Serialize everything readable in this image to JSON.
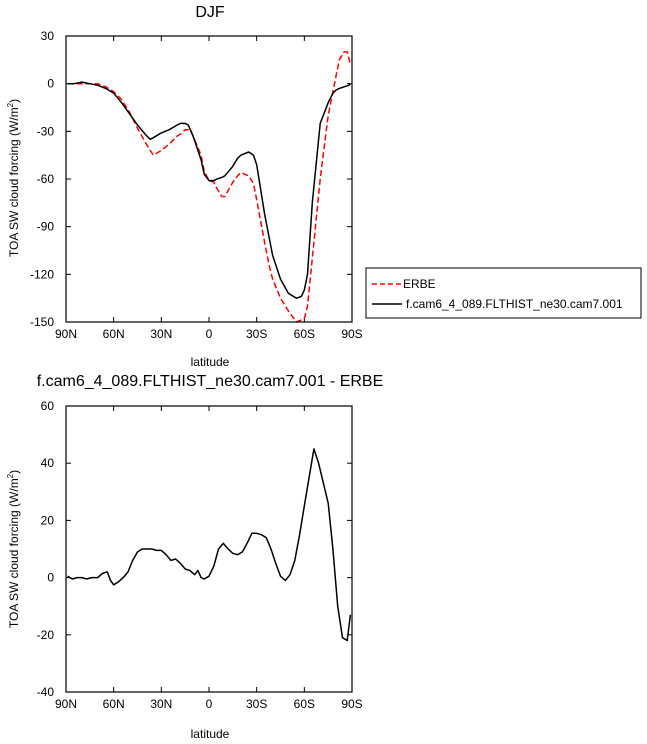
{
  "chart_data": [
    {
      "type": "line",
      "title": "DJF",
      "xlabel": "latitude",
      "ylabel": "TOA SW cloud forcing (W/m",
      "ylabel_sup": "2",
      "ylabel_end": ")",
      "xlim": [
        90,
        -90
      ],
      "ylim": [
        -150,
        30
      ],
      "xticks": [
        90,
        60,
        30,
        0,
        -30,
        -60,
        -90
      ],
      "xtick_labels": [
        "90N",
        "60N",
        "30N",
        "0",
        "30S",
        "60S",
        "90S"
      ],
      "yticks": [
        30,
        0,
        -30,
        -60,
        -90,
        -120,
        -150
      ],
      "ytick_labels": [
        "30",
        "0",
        "-30",
        "-60",
        "-90",
        "-120",
        "-150"
      ],
      "legend_position": "right",
      "series": [
        {
          "name": "ERBE",
          "color": "#ff0000",
          "style": "dashed",
          "x": [
            89,
            85,
            80,
            75,
            70,
            65,
            60,
            55,
            50,
            45,
            40,
            37,
            35,
            30,
            25,
            20,
            17,
            15,
            12,
            10,
            5,
            3,
            0,
            -3,
            -5,
            -8,
            -10,
            -15,
            -18,
            -20,
            -25,
            -28,
            -30,
            -35,
            -38,
            -40,
            -45,
            -50,
            -55,
            -60,
            -62,
            -65,
            -70,
            -75,
            -80,
            -82,
            -85,
            -87,
            -88,
            -89
          ],
          "y": [
            0,
            0,
            0,
            0,
            0,
            -2,
            -5,
            -10,
            -18,
            -28,
            -37,
            -42,
            -45,
            -42,
            -38,
            -33,
            -31,
            -29,
            -29,
            -33,
            -45,
            -55,
            -61,
            -62,
            -66,
            -71,
            -71,
            -62,
            -58,
            -56,
            -58,
            -63,
            -73,
            -100,
            -115,
            -123,
            -135,
            -143,
            -150,
            -148,
            -140,
            -110,
            -60,
            -20,
            5,
            15,
            20,
            20,
            16,
            12
          ]
        },
        {
          "name": "f.cam6_4_089.FLTHIST_ne30.cam7.001",
          "color": "#000000",
          "style": "solid",
          "x": [
            89,
            85,
            80,
            75,
            70,
            65,
            60,
            55,
            50,
            45,
            40,
            37,
            35,
            30,
            25,
            20,
            18,
            15,
            13,
            10,
            5,
            3,
            0,
            -3,
            -5,
            -8,
            -10,
            -15,
            -18,
            -20,
            -25,
            -28,
            -30,
            -35,
            -40,
            -45,
            -50,
            -55,
            -58,
            -60,
            -62,
            -65,
            -70,
            -75,
            -78,
            -80,
            -82,
            -85,
            -88,
            -89
          ],
          "y": [
            0,
            0,
            1,
            0,
            -1,
            -3,
            -6,
            -12,
            -19,
            -26,
            -32,
            -35,
            -34,
            -31,
            -29,
            -26,
            -25,
            -25,
            -26,
            -33,
            -48,
            -57,
            -61,
            -61,
            -60,
            -59,
            -58,
            -52,
            -47,
            -45,
            -43,
            -45,
            -51,
            -82,
            -108,
            -123,
            -132,
            -135,
            -134,
            -130,
            -120,
            -75,
            -25,
            -12,
            -6,
            -4,
            -3,
            -2,
            -1,
            0
          ]
        }
      ]
    },
    {
      "type": "line",
      "title": "f.cam6_4_089.FLTHIST_ne30.cam7.001 - ERBE",
      "xlabel": "latitude",
      "ylabel": "TOA SW cloud forcing (W/m",
      "ylabel_sup": "2",
      "ylabel_end": ")",
      "xlim": [
        90,
        -90
      ],
      "ylim": [
        -40,
        60
      ],
      "xticks": [
        90,
        60,
        30,
        0,
        -30,
        -60,
        -90
      ],
      "xtick_labels": [
        "90N",
        "60N",
        "30N",
        "0",
        "30S",
        "60S",
        "90S"
      ],
      "yticks": [
        60,
        40,
        20,
        0,
        -20,
        -40
      ],
      "ytick_labels": [
        "60",
        "40",
        "20",
        "0",
        "-20",
        "-40"
      ],
      "series": [
        {
          "color": "#000000",
          "style": "solid",
          "x": [
            89,
            86,
            83,
            80,
            77,
            74,
            70,
            67,
            64,
            62,
            60,
            57,
            54,
            51,
            48,
            45,
            42,
            39,
            36,
            33,
            30,
            27,
            24,
            21,
            18,
            15,
            12,
            9,
            7,
            5,
            3,
            0,
            -3,
            -6,
            -9,
            -12,
            -15,
            -18,
            -21,
            -24,
            -27,
            -30,
            -33,
            -36,
            -39,
            -42,
            -45,
            -48,
            -51,
            -54,
            -57,
            -60,
            -63,
            -66,
            -69,
            -72,
            -75,
            -78,
            -81,
            -84,
            -87,
            -89
          ],
          "y": [
            0.5,
            -0.5,
            0,
            0,
            -0.5,
            0,
            0,
            1.5,
            2,
            -1,
            -2.5,
            -1.5,
            0,
            2,
            6,
            9,
            10,
            10,
            10,
            9.5,
            9.5,
            8,
            6,
            6.5,
            5,
            3,
            2.5,
            1,
            2.5,
            0,
            -0.5,
            0.5,
            4,
            10,
            12,
            10,
            8.5,
            8,
            9,
            12,
            15.5,
            15.5,
            15,
            14,
            10,
            5,
            0.5,
            -1,
            1,
            6,
            15,
            25,
            35,
            45,
            40,
            33,
            26,
            10,
            -10,
            -21,
            -22,
            -13
          ]
        }
      ]
    }
  ]
}
